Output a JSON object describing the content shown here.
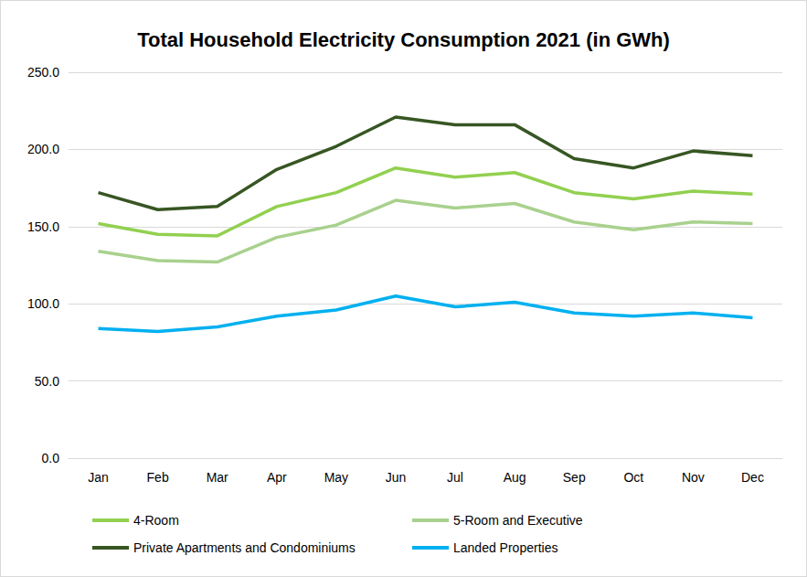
{
  "chart_data": {
    "type": "line",
    "title": "Total Household Electricity Consumption 2021 (in GWh)",
    "categories": [
      "Jan",
      "Feb",
      "Mar",
      "Apr",
      "May",
      "Jun",
      "Jul",
      "Aug",
      "Sep",
      "Oct",
      "Nov",
      "Dec"
    ],
    "series": [
      {
        "name": "4-Room",
        "color": "#92d050",
        "values": [
          152,
          145,
          144,
          163,
          172,
          188,
          182,
          185,
          172,
          168,
          173,
          171
        ]
      },
      {
        "name": "5-Room and Executive",
        "color": "#a9d18e",
        "values": [
          134,
          128,
          127,
          143,
          151,
          167,
          162,
          165,
          153,
          148,
          153,
          152
        ]
      },
      {
        "name": "Private Apartments and Condominiums",
        "color": "#375623",
        "values": [
          172,
          161,
          163,
          187,
          202,
          221,
          216,
          216,
          194,
          188,
          199,
          196
        ]
      },
      {
        "name": "Landed Properties",
        "color": "#00b0f0",
        "values": [
          84,
          82,
          85,
          92,
          96,
          105,
          98,
          101,
          94,
          92,
          94,
          91
        ]
      }
    ],
    "ylim": [
      0,
      250
    ],
    "yticks": [
      {
        "value": 0,
        "label": "0.0"
      },
      {
        "value": 50,
        "label": "50.0"
      },
      {
        "value": 100,
        "label": "100.0"
      },
      {
        "value": 150,
        "label": "150.0"
      },
      {
        "value": 200,
        "label": "200.0"
      },
      {
        "value": 250,
        "label": "250.0"
      }
    ],
    "grid": true,
    "legend": "bottom"
  }
}
